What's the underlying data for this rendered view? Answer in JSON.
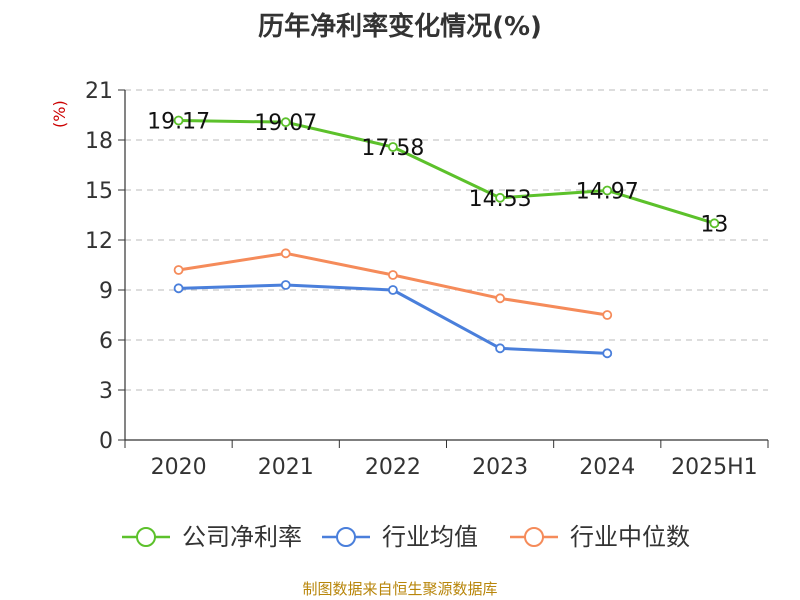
{
  "chart_data": {
    "type": "line",
    "title": "历年净利率变化情况(%)",
    "ylabel": "(%)",
    "xlabel": "",
    "categories": [
      "2020",
      "2021",
      "2022",
      "2023",
      "2024",
      "2025H1"
    ],
    "ylim": [
      0,
      21
    ],
    "yticks": [
      0,
      3,
      6,
      9,
      12,
      15,
      18,
      21
    ],
    "grid": true,
    "legend_position": "bottom",
    "series": [
      {
        "name": "公司净利率",
        "color": "#5cc12b",
        "values": [
          19.17,
          19.07,
          17.58,
          14.53,
          14.97,
          13
        ],
        "labels": [
          "19.17",
          "19.07",
          "17.58",
          "14.53",
          "14.97",
          "13"
        ]
      },
      {
        "name": "行业均值",
        "color": "#4a7fdb",
        "values": [
          9.1,
          9.3,
          9.0,
          5.5,
          5.2,
          null
        ]
      },
      {
        "name": "行业中位数",
        "color": "#f58b5a",
        "values": [
          10.2,
          11.2,
          9.9,
          8.5,
          7.5,
          null
        ]
      }
    ]
  },
  "footer": "制图数据来自恒生聚源数据库"
}
